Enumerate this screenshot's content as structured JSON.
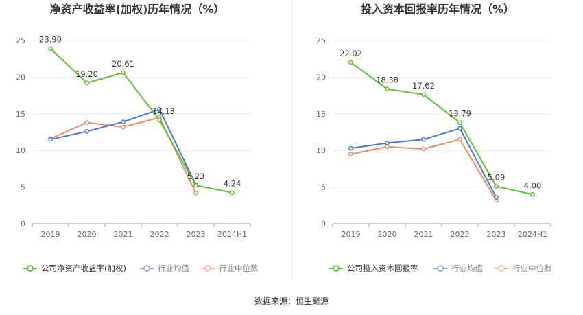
{
  "source": "数据来源：恒生聚源",
  "colors": {
    "company": "#5cc42c",
    "avg": "#4678d7",
    "median": "#f08a63",
    "grid": "#e6e8f0",
    "axis": "#999999"
  },
  "chart_data": [
    {
      "type": "line",
      "title": "净资产收益率(加权)历年情况（%）",
      "categories": [
        "2019",
        "2020",
        "2021",
        "2022",
        "2023",
        "2024H1"
      ],
      "ylim": [
        0,
        25
      ],
      "yticks": [
        "0",
        "5",
        "10",
        "15",
        "20",
        "25"
      ],
      "series": [
        {
          "name": "公司净资产收益率(加权)",
          "key": "company",
          "values": [
            23.9,
            19.2,
            20.61,
            14.13,
            5.23,
            4.24
          ],
          "labels": [
            "23.90",
            "19.20",
            "20.61",
            "14.13",
            "5.23",
            "4.24"
          ]
        },
        {
          "name": "行业均值",
          "key": "avg",
          "values": [
            11.5,
            12.6,
            13.9,
            15.6,
            5.3,
            null
          ]
        },
        {
          "name": "行业中位数",
          "key": "median",
          "values": [
            11.6,
            13.8,
            13.2,
            14.5,
            4.2,
            null
          ]
        }
      ]
    },
    {
      "type": "line",
      "title": "投入资本回报率历年情况（%）",
      "categories": [
        "2019",
        "2020",
        "2021",
        "2022",
        "2023",
        "2024H1"
      ],
      "ylim": [
        0,
        25
      ],
      "yticks": [
        "0",
        "5",
        "10",
        "15",
        "20",
        "25"
      ],
      "series": [
        {
          "name": "公司投入资本回报率",
          "key": "company",
          "values": [
            22.02,
            18.38,
            17.62,
            13.79,
            5.09,
            4.0
          ],
          "labels": [
            "22.02",
            "18.38",
            "17.62",
            "13.79",
            "5.09",
            "4.00"
          ]
        },
        {
          "name": "行业均值",
          "key": "avg",
          "values": [
            10.3,
            11.0,
            11.5,
            13.0,
            3.6,
            null
          ]
        },
        {
          "name": "行业中位数",
          "key": "median",
          "values": [
            9.5,
            10.5,
            10.2,
            11.5,
            3.2,
            null
          ]
        }
      ]
    }
  ]
}
